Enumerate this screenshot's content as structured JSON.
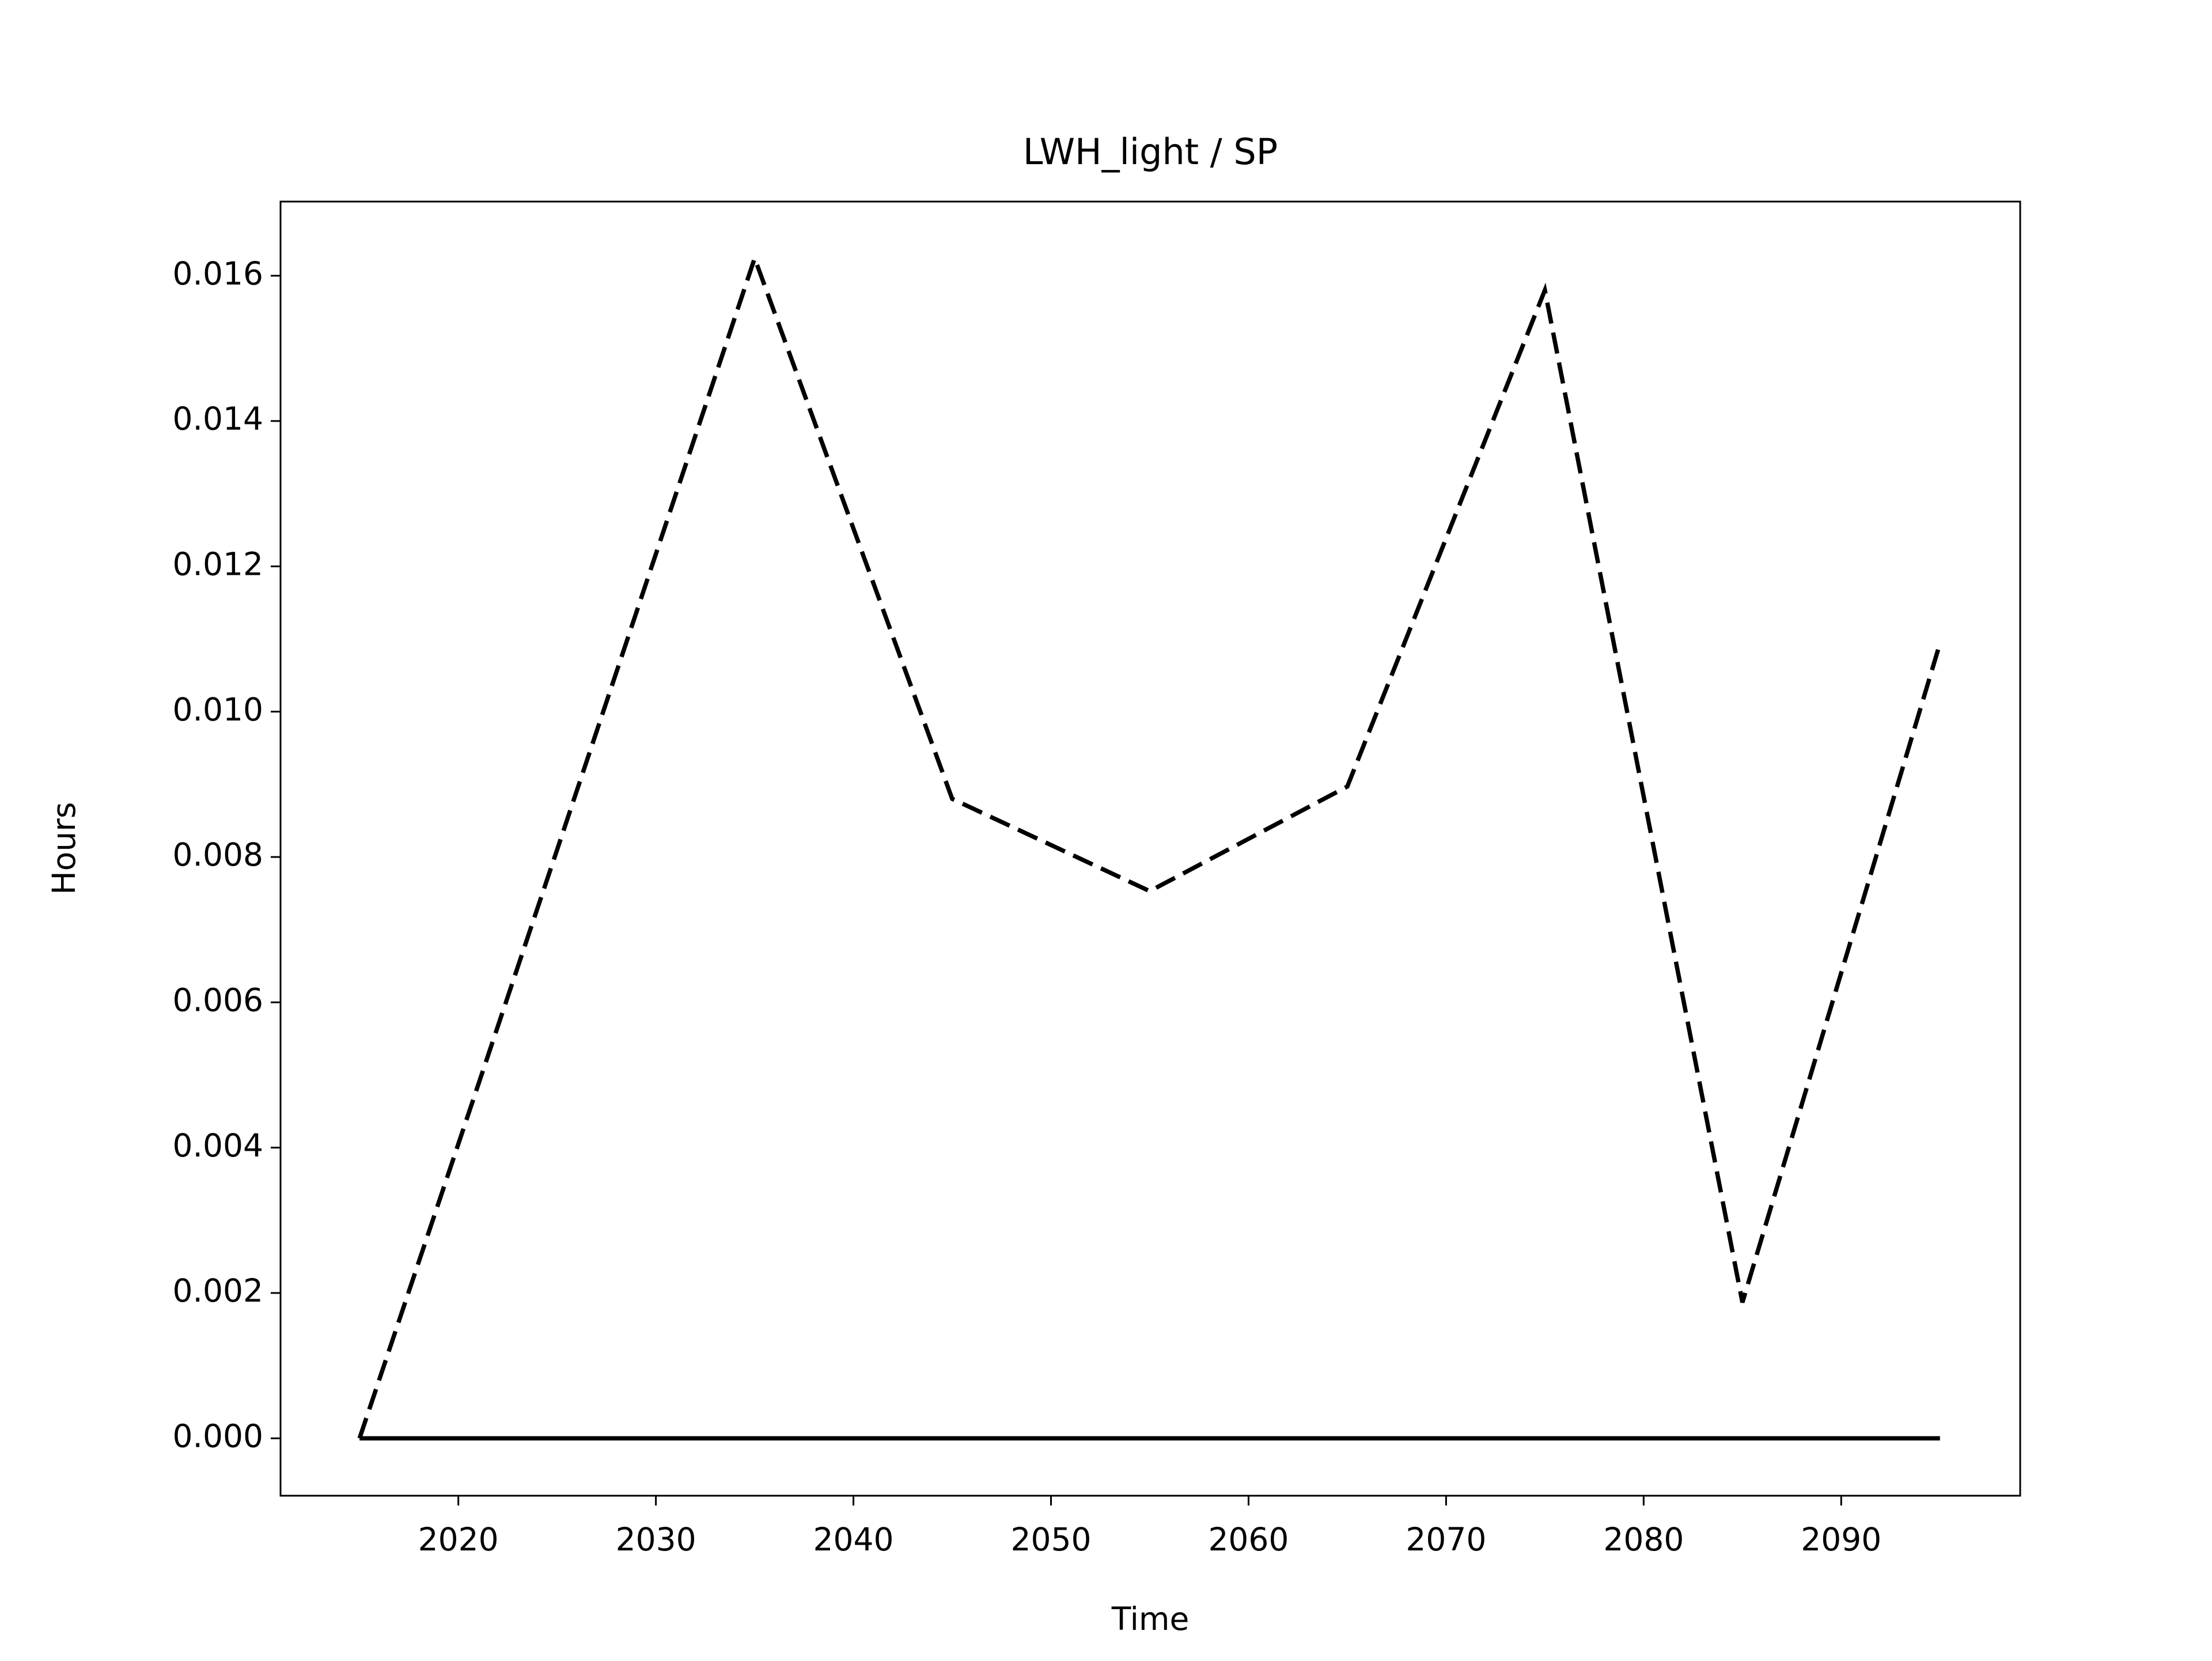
{
  "chart_data": {
    "type": "line",
    "title": "LWH_light / SP",
    "xlabel": "Time",
    "ylabel": "Hours",
    "x": [
      2015,
      2025,
      2035,
      2045,
      2055,
      2065,
      2075,
      2085,
      2095
    ],
    "series": [
      {
        "color": "#000000",
        "style": "dashed",
        "values": [
          0,
          0.0081,
          0.01624,
          0.0088,
          0.00753,
          0.00897,
          0.0158,
          0.00187,
          0.01094
        ]
      },
      {
        "color": "#000000",
        "style": "solid",
        "values": [
          0,
          0,
          0,
          0,
          0,
          0,
          0,
          0,
          0
        ]
      }
    ],
    "xlim": [
      2011.0,
      2099.06
    ],
    "ylim": [
      -0.00079,
      0.01702
    ],
    "xticks": [
      2020,
      2030,
      2040,
      2050,
      2060,
      2070,
      2080,
      2090
    ],
    "yticks": [
      {
        "value": 0,
        "label": "0.000"
      },
      {
        "value": 0.002,
        "label": "0.002"
      },
      {
        "value": 0.004,
        "label": "0.004"
      },
      {
        "value": 0.006,
        "label": "0.006"
      },
      {
        "value": 0.008,
        "label": "0.008"
      },
      {
        "value": 0.01,
        "label": "0.010"
      },
      {
        "value": 0.012,
        "label": "0.012"
      },
      {
        "value": 0.014,
        "label": "0.014"
      },
      {
        "value": 0.016,
        "label": "0.016"
      }
    ],
    "grid": false
  }
}
